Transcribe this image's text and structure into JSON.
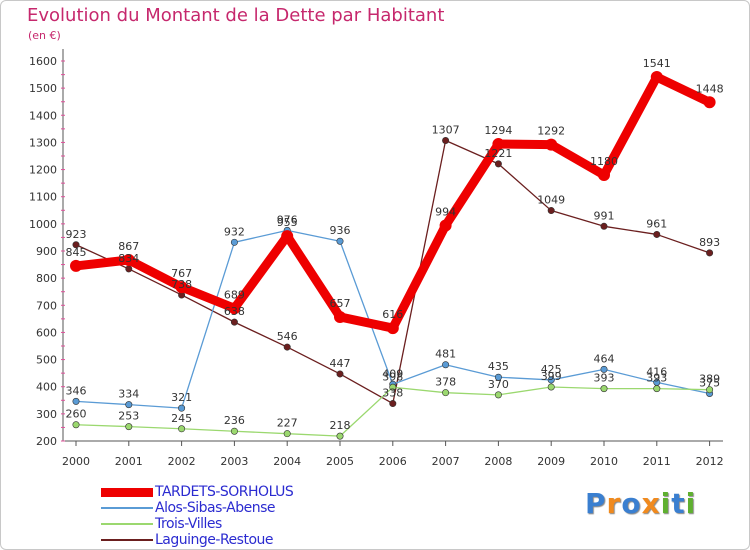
{
  "header": {
    "title": "Evolution du Montant de la Dette par Habitant",
    "subtitle": "(en €)"
  },
  "logo": {
    "text": "Proxiti",
    "letters": [
      {
        "ch": "P",
        "color": "#3a7fd0"
      },
      {
        "ch": "r",
        "color": "#f08a1e"
      },
      {
        "ch": "o",
        "color": "#3a7fd0"
      },
      {
        "ch": "x",
        "color": "#f08a1e"
      },
      {
        "ch": "i",
        "color": "#5fb030"
      },
      {
        "ch": "t",
        "color": "#3a7fd0"
      },
      {
        "ch": "i",
        "color": "#5fb030"
      }
    ]
  },
  "chart_data": {
    "type": "line",
    "title": "Evolution du Montant de la Dette par Habitant",
    "subtitle": "(en €)",
    "x": [
      "2000",
      "2001",
      "2002",
      "2003",
      "2004",
      "2005",
      "2006",
      "2007",
      "2008",
      "2009",
      "2010",
      "2011",
      "2012"
    ],
    "ylim": [
      200,
      1600
    ],
    "yticks": [
      200,
      300,
      400,
      500,
      600,
      700,
      800,
      900,
      1000,
      1100,
      1200,
      1300,
      1400,
      1500,
      1600
    ],
    "grid": false,
    "legend_position": "bottom-left",
    "series": [
      {
        "name": "TARDETS-SORHOLUS",
        "color": "#ee0000",
        "values": [
          845,
          867,
          767,
          689,
          955,
          657,
          616,
          994,
          1294,
          1292,
          1180,
          1541,
          1448
        ]
      },
      {
        "name": "Alos-Sibas-Abense",
        "color": "#5a9bd5",
        "values": [
          346,
          334,
          321,
          932,
          976,
          936,
          409,
          481,
          435,
          425,
          464,
          416,
          375
        ]
      },
      {
        "name": "Trois-Villes",
        "color": "#9bd86f",
        "values": [
          260,
          253,
          245,
          236,
          227,
          218,
          398,
          378,
          370,
          399,
          393,
          393,
          389
        ]
      },
      {
        "name": "Laguinge-Restoue",
        "color": "#6b1f1f",
        "values": [
          923,
          834,
          738,
          638,
          546,
          447,
          338,
          1307,
          1221,
          1049,
          991,
          961,
          893
        ]
      }
    ]
  }
}
